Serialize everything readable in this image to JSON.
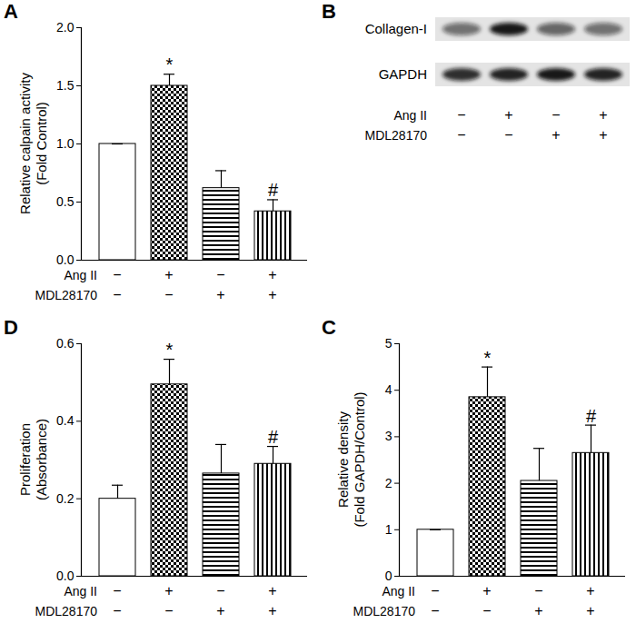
{
  "chart_data": [
    {
      "panel": "A",
      "type": "bar",
      "ylabel": "Relative calpain activity\n(Fold Control)",
      "categories": [
        null,
        null,
        null,
        null
      ],
      "values": [
        1.0,
        1.5,
        0.62,
        0.42
      ],
      "errors": [
        0,
        0.1,
        0.15,
        0.1
      ],
      "significance": [
        null,
        "*",
        null,
        "#"
      ],
      "ylim": [
        0,
        2
      ],
      "yticks": [
        {
          "value": 0,
          "label": "0.0"
        },
        {
          "value": 0.5,
          "label": "0.5"
        },
        {
          "value": 1,
          "label": "1.0"
        },
        {
          "value": 1.5,
          "label": "1.5"
        },
        {
          "value": 2,
          "label": "2.0"
        }
      ],
      "treatments": [
        {
          "name": "Ang II",
          "signs": [
            "−",
            "+",
            "−",
            "+"
          ]
        },
        {
          "name": "MDL28170",
          "signs": [
            "−",
            "−",
            "+",
            "+"
          ]
        }
      ]
    },
    {
      "panel": "B",
      "type": "blot",
      "rows": [
        {
          "name": "Collagen-I",
          "band_intensity": [
            0.55,
            0.95,
            0.6,
            0.55
          ]
        },
        {
          "name": "GAPDH",
          "band_intensity": [
            0.85,
            0.9,
            0.95,
            0.9
          ]
        }
      ],
      "treatments": [
        {
          "name": "Ang II",
          "signs": [
            "−",
            "+",
            "−",
            "+"
          ]
        },
        {
          "name": "MDL28170",
          "signs": [
            "−",
            "−",
            "+",
            "+"
          ]
        }
      ]
    },
    {
      "panel": "C",
      "type": "bar",
      "ylabel": "Relative density\n(Fold GAPDH/Control)",
      "categories": [
        null,
        null,
        null,
        null
      ],
      "values": [
        1.0,
        3.85,
        2.05,
        2.65
      ],
      "errors": [
        0,
        0.65,
        0.7,
        0.6
      ],
      "significance": [
        null,
        "*",
        null,
        "#"
      ],
      "ylim": [
        0,
        5
      ],
      "yticks": [
        0,
        1,
        2,
        3,
        4,
        5
      ],
      "treatments": [
        {
          "name": "Ang II",
          "signs": [
            "−",
            "+",
            "−",
            "+"
          ]
        },
        {
          "name": "MDL28170",
          "signs": [
            "−",
            "−",
            "+",
            "+"
          ]
        }
      ]
    },
    {
      "panel": "D",
      "type": "bar",
      "ylabel": "Proliferation\n(Absorbance)",
      "categories": [
        null,
        null,
        null,
        null
      ],
      "values": [
        0.2,
        0.495,
        0.265,
        0.29
      ],
      "errors": [
        0.035,
        0.065,
        0.075,
        0.045
      ],
      "significance": [
        null,
        "*",
        null,
        "#"
      ],
      "ylim": [
        0,
        0.6
      ],
      "yticks": [
        {
          "value": 0,
          "label": "0.0"
        },
        {
          "value": 0.2,
          "label": "0.2"
        },
        {
          "value": 0.4,
          "label": "0.4"
        },
        {
          "value": 0.6,
          "label": "0.6"
        }
      ],
      "treatments": [
        {
          "name": "Ang II",
          "signs": [
            "−",
            "+",
            "−",
            "+"
          ]
        },
        {
          "name": "MDL28170",
          "signs": [
            "−",
            "−",
            "+",
            "+"
          ]
        }
      ]
    }
  ]
}
